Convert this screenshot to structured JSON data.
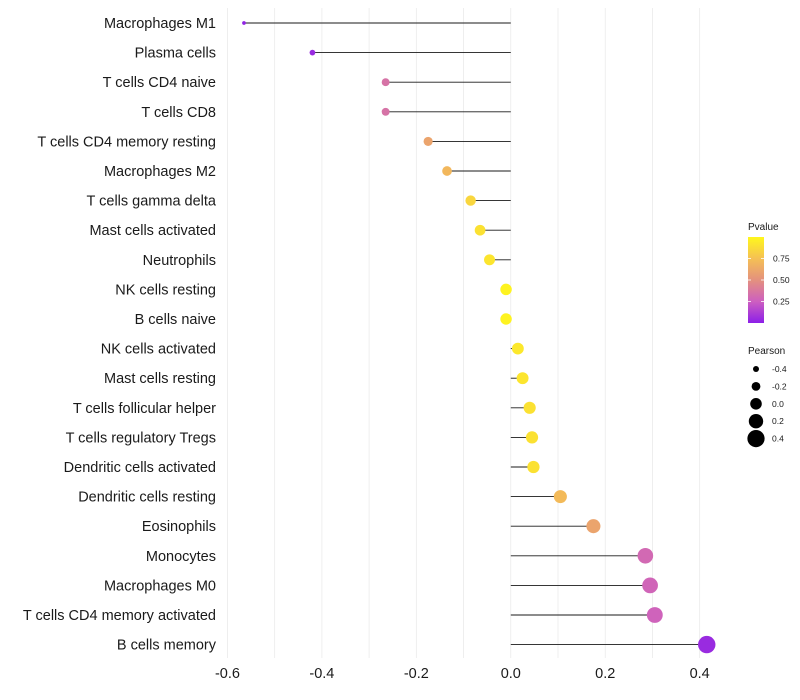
{
  "chart_data": {
    "type": "lollipop",
    "title": "",
    "xlabel": "",
    "ylabel": "",
    "xlim": [
      -0.62,
      0.46
    ],
    "x_ticks": [
      -0.6,
      -0.4,
      -0.2,
      0.0,
      0.2,
      0.4
    ],
    "x_tick_labels": [
      "-0.6",
      "-0.4",
      "-0.2",
      "0.0",
      "0.2",
      "0.4"
    ],
    "grid": true,
    "baseline": 0.0,
    "categories": [
      "Macrophages M1",
      "Plasma cells",
      "T cells CD4 naive",
      "T cells CD8",
      "T cells CD4 memory resting",
      "Macrophages M2",
      "T cells gamma delta",
      "Mast cells activated",
      "Neutrophils",
      "NK cells resting",
      "B cells naive",
      "NK cells activated",
      "Mast cells resting",
      "T cells follicular helper",
      "T cells regulatory  Tregs ",
      "Dendritic cells activated",
      "Dendritic cells resting",
      "Eosinophils",
      "Monocytes",
      "Macrophages M0",
      "T cells CD4 memory activated",
      "B cells memory"
    ],
    "pearson": [
      -0.565,
      -0.42,
      -0.265,
      -0.265,
      -0.175,
      -0.135,
      -0.085,
      -0.065,
      -0.045,
      -0.01,
      -0.01,
      0.015,
      0.025,
      0.04,
      0.045,
      0.048,
      0.105,
      0.175,
      0.285,
      0.295,
      0.305,
      0.415
    ],
    "pvalue": [
      0.02,
      0.05,
      0.35,
      0.35,
      0.6,
      0.7,
      0.85,
      0.9,
      0.92,
      0.98,
      0.98,
      0.93,
      0.92,
      0.9,
      0.9,
      0.9,
      0.72,
      0.6,
      0.3,
      0.28,
      0.27,
      0.05
    ],
    "legend": {
      "color": {
        "title": "Pvalue",
        "ticks": [
          0.25,
          0.5,
          0.75
        ],
        "tick_labels": [
          "0.25",
          "0.50",
          "0.75"
        ],
        "range": [
          0.0,
          1.0
        ],
        "placement": "right",
        "colors": [
          "#8c1ee8",
          "#cd5fc0",
          "#e4917e",
          "#f5c054",
          "#fff71c"
        ]
      },
      "size": {
        "title": "Pearson",
        "values": [
          -0.4,
          -0.2,
          0.0,
          0.2,
          0.4
        ],
        "labels": [
          "-0.4",
          "-0.2",
          "0.0",
          "0.2",
          "0.4"
        ],
        "placement": "right"
      }
    }
  }
}
